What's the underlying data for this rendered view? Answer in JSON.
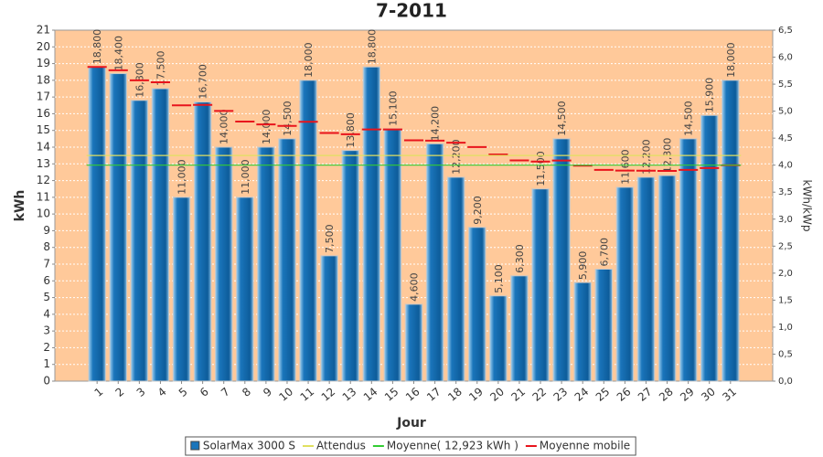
{
  "chart_data": {
    "type": "bar",
    "title": "7-2011",
    "x_label": "Jour",
    "y_label": "kWh",
    "y2_label": "kWh/kWp",
    "categories": [
      "1",
      "2",
      "3",
      "4",
      "5",
      "6",
      "7",
      "8",
      "9",
      "10",
      "11",
      "12",
      "13",
      "14",
      "15",
      "16",
      "17",
      "18",
      "19",
      "20",
      "21",
      "22",
      "23",
      "24",
      "25",
      "26",
      "27",
      "28",
      "29",
      "30",
      "31"
    ],
    "series": [
      {
        "name": "SolarMax 3000 S",
        "color": "#1a75bb",
        "values": [
          18.8,
          18.4,
          16.8,
          17.5,
          11.0,
          16.7,
          14.0,
          11.0,
          14.0,
          14.5,
          18.0,
          7.5,
          13.8,
          18.8,
          15.1,
          4.6,
          14.2,
          12.2,
          9.2,
          5.1,
          6.3,
          11.5,
          14.5,
          5.9,
          6.7,
          11.6,
          12.2,
          12.3,
          14.5,
          15.9,
          18.0
        ],
        "value_labels": [
          "18,800",
          "18,400",
          "16,800",
          "17,500",
          "11,000",
          "16,700",
          "14,000",
          "11,000",
          "14,000",
          "14,500",
          "18,000",
          "7,500",
          "13,800",
          "18,800",
          "15,100",
          "4,600",
          "14,200",
          "12,200",
          "9,200",
          "5,100",
          "6,300",
          "11,500",
          "14,500",
          "5,900",
          "6,700",
          "11,600",
          "12,200",
          "12,300",
          "14,500",
          "15,900",
          "18,000"
        ]
      },
      {
        "name": "Moyenne mobile",
        "color": "#e8141c",
        "values": [
          18.8,
          18.6,
          18.0,
          17.88,
          16.5,
          16.53,
          16.17,
          15.53,
          15.36,
          15.27,
          15.52,
          14.85,
          14.77,
          15.06,
          15.06,
          14.41,
          14.39,
          14.27,
          14.01,
          13.56,
          13.21,
          13.14,
          13.2,
          12.89,
          12.64,
          12.6,
          12.59,
          12.58,
          12.64,
          12.75,
          12.92
        ]
      }
    ],
    "reference_lines": [
      {
        "name": "Attendus",
        "color": "#e0e060",
        "value": 13.5
      },
      {
        "name": "Moyenne( 12,923 kWh )",
        "color": "#33cc33",
        "value": 12.923
      }
    ],
    "ylim": [
      0,
      21
    ],
    "yticks": [
      0,
      1,
      2,
      3,
      4,
      5,
      6,
      7,
      8,
      9,
      10,
      11,
      12,
      13,
      14,
      15,
      16,
      17,
      18,
      19,
      20,
      21
    ],
    "y2lim": [
      0,
      6.5
    ],
    "y2ticks": [
      {
        "value": 0,
        "label": "0,0"
      },
      {
        "value": 0.5,
        "label": "0,5"
      },
      {
        "value": 1,
        "label": "1,0"
      },
      {
        "value": 1.5,
        "label": "1,5"
      },
      {
        "value": 2,
        "label": "2,0"
      },
      {
        "value": 2.5,
        "label": "2,5"
      },
      {
        "value": 3,
        "label": "3,0"
      },
      {
        "value": 3.5,
        "label": "3,5"
      },
      {
        "value": 4,
        "label": "4,0"
      },
      {
        "value": 4.5,
        "label": "4,5"
      },
      {
        "value": 5,
        "label": "5,0"
      },
      {
        "value": 5.5,
        "label": "5,5"
      },
      {
        "value": 6,
        "label": "6,0"
      },
      {
        "value": 6.5,
        "label": "6,5"
      }
    ],
    "grid": true,
    "legend": "bottom"
  }
}
